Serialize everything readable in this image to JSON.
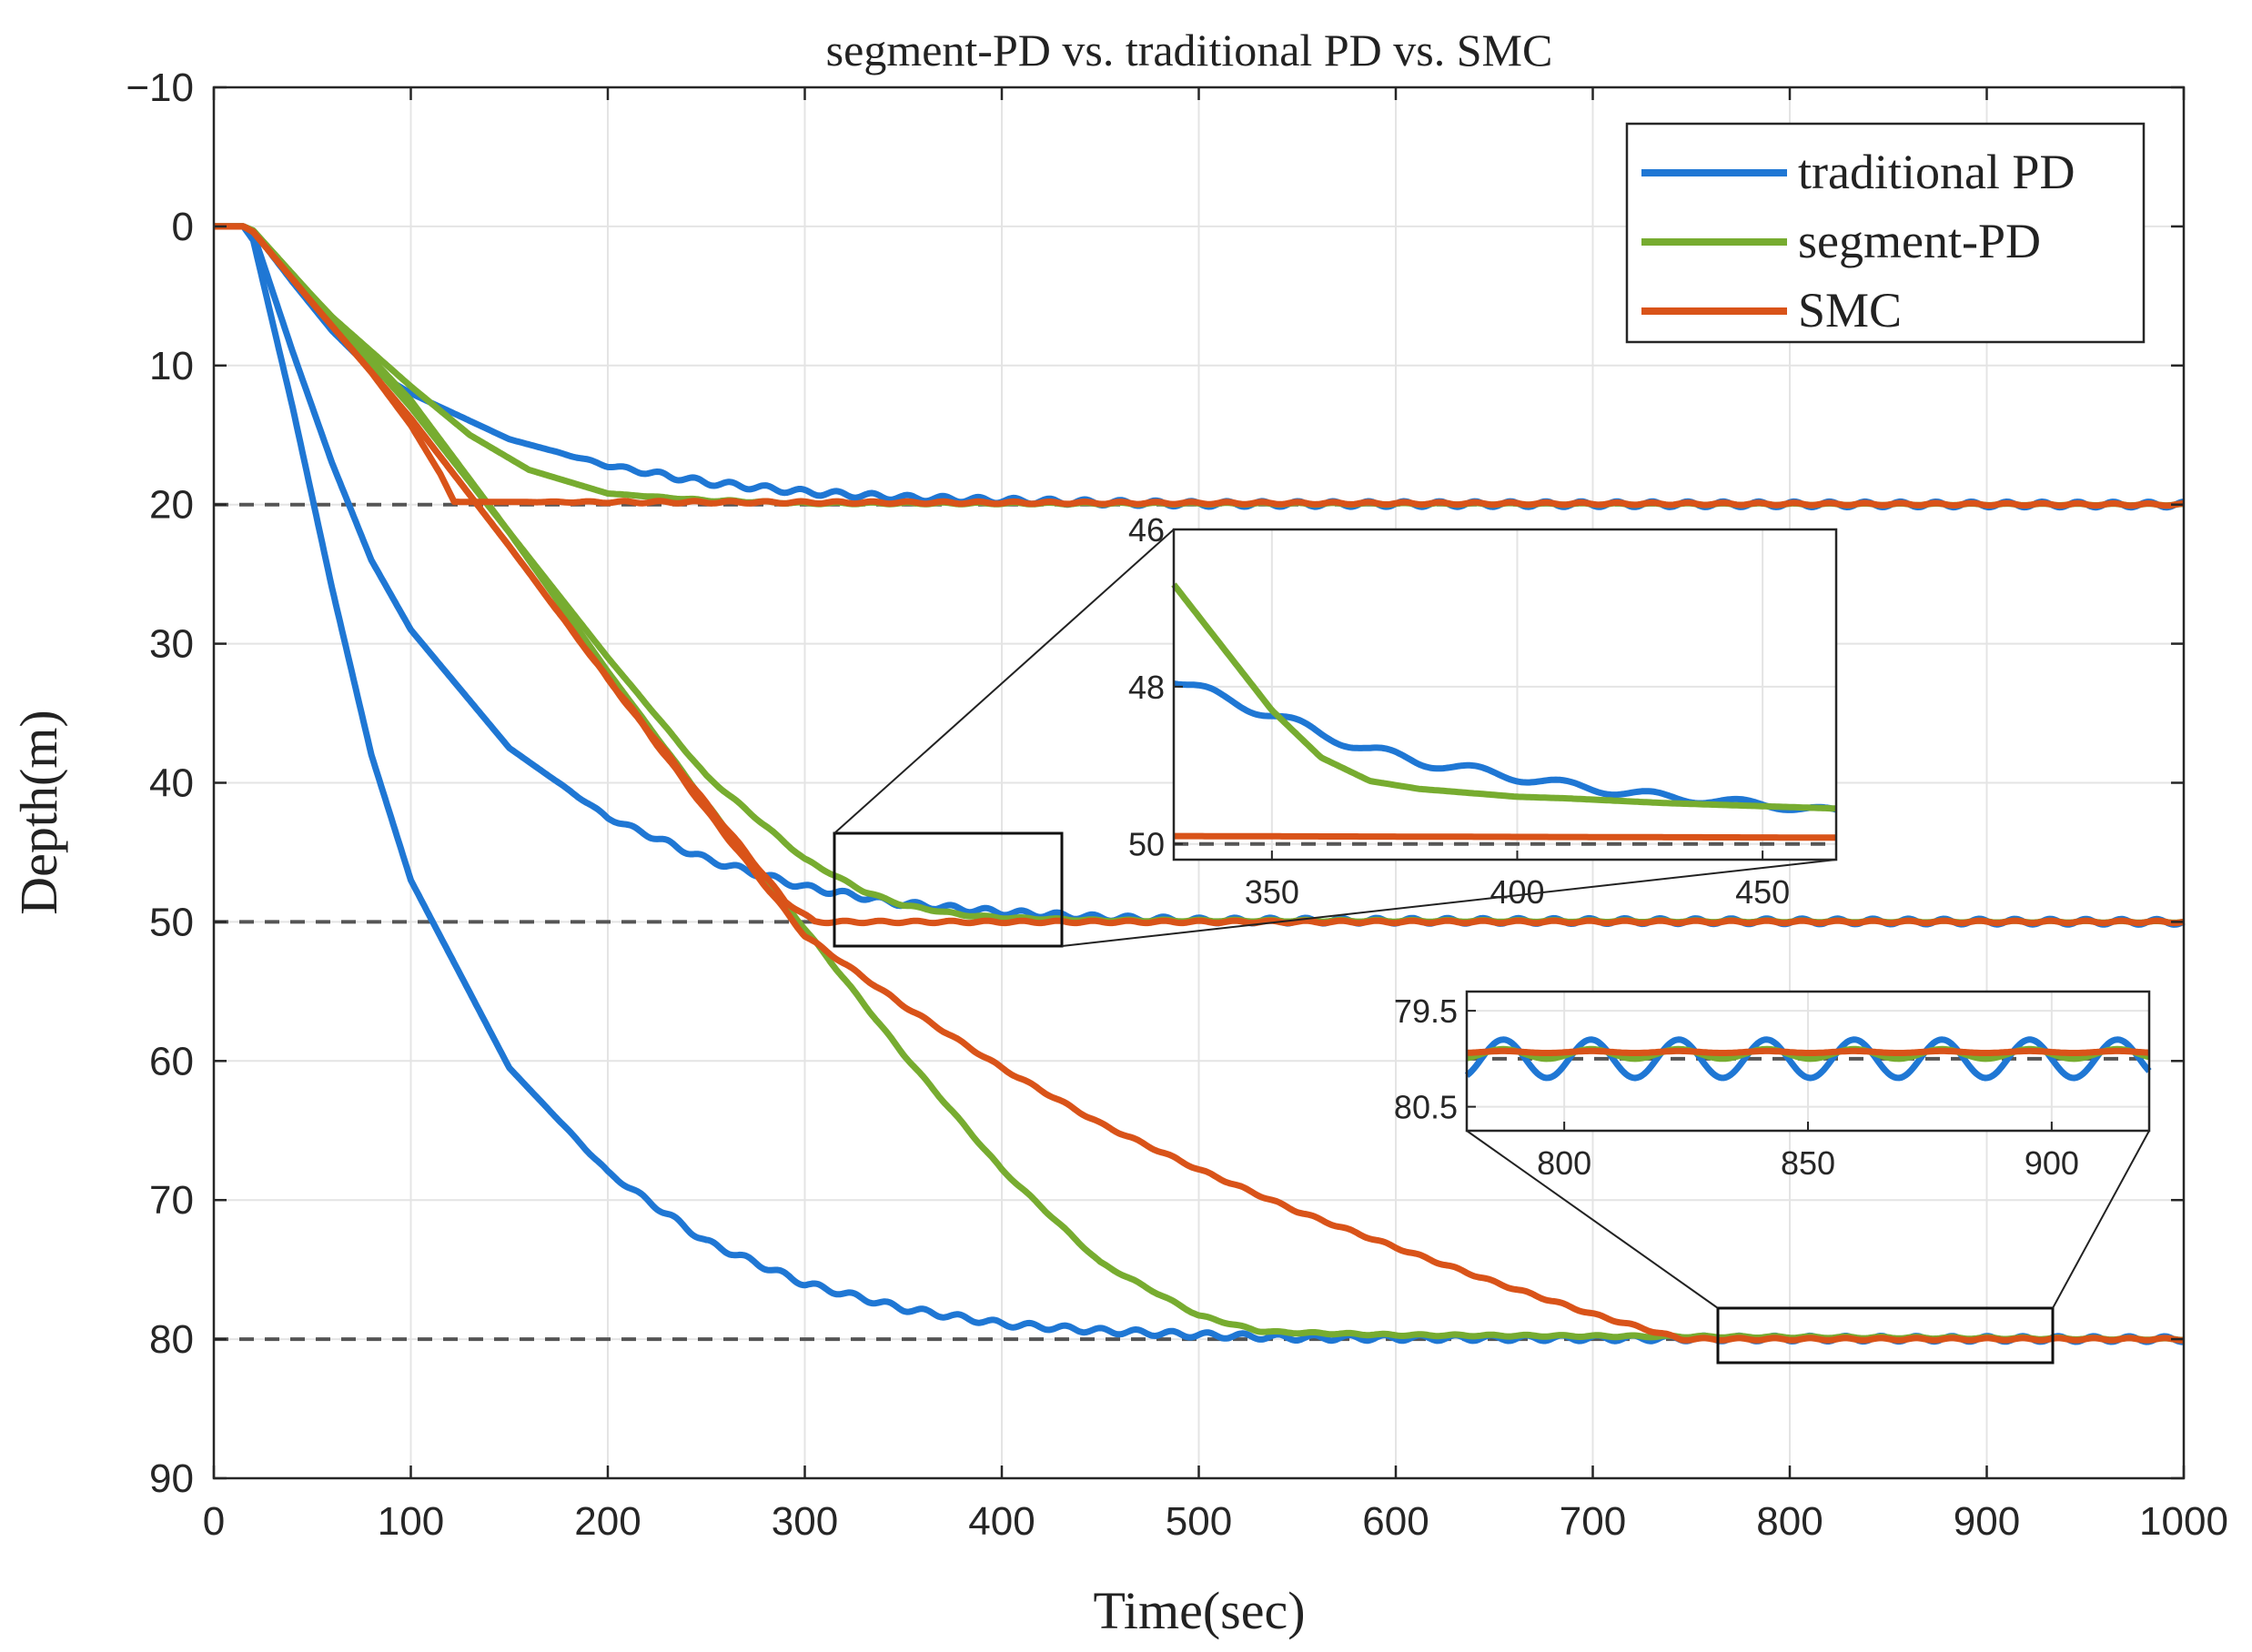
{
  "chart_data": [
    {
      "type": "line",
      "title": "segment-PD vs. traditional PD vs. SMC",
      "xlabel": "Time(sec)",
      "ylabel": "Depth(m)",
      "xlim": [
        0,
        1000
      ],
      "ylim": [
        -10,
        90
      ],
      "y_reversed": true,
      "grid": true,
      "legend_position": "top-right",
      "xticks": [
        "0",
        "100",
        "200",
        "300",
        "400",
        "500",
        "600",
        "700",
        "800",
        "900",
        "1000"
      ],
      "yticks": [
        "−10",
        "0",
        "10",
        "20",
        "30",
        "40",
        "50",
        "60",
        "70",
        "80",
        "90"
      ],
      "reference_lines": [
        20,
        50,
        80
      ],
      "series": [
        {
          "name": "traditional PD",
          "color": "#1f77d4",
          "runs": [
            {
              "target": 20,
              "x": [
                0,
                15,
                20,
                40,
                60,
                80,
                100,
                150,
                200,
                250,
                300,
                350,
                400,
                450,
                500,
                1000
              ],
              "y": [
                0,
                0,
                0.3,
                4,
                7.5,
                10.3,
                12,
                15.3,
                17.2,
                18.4,
                19.1,
                19.5,
                19.7,
                19.85,
                19.95,
                20
              ]
            },
            {
              "target": 50,
              "x": [
                0,
                15,
                20,
                40,
                60,
                80,
                100,
                150,
                200,
                250,
                300,
                350,
                400,
                450,
                500,
                1000
              ],
              "y": [
                0,
                0,
                0.5,
                9,
                17,
                24,
                29,
                37.5,
                42.5,
                45.5,
                47.5,
                48.7,
                49.3,
                49.7,
                49.9,
                50
              ]
            },
            {
              "target": 80,
              "x": [
                0,
                15,
                20,
                40,
                60,
                80,
                100,
                150,
                200,
                250,
                300,
                350,
                400,
                450,
                500,
                550,
                1000
              ],
              "y": [
                0,
                0,
                1,
                13,
                26,
                38,
                47,
                60.5,
                68,
                73,
                76,
                77.8,
                78.9,
                79.4,
                79.7,
                79.9,
                80
              ]
            }
          ]
        },
        {
          "name": "segment-PD",
          "color": "#77ac30",
          "runs": [
            {
              "target": 20,
              "x": [
                0,
                15,
                20,
                40,
                60,
                80,
                100,
                130,
                160,
                200,
                250,
                300,
                1000
              ],
              "y": [
                0,
                0,
                0.3,
                3.5,
                6.5,
                9,
                11.5,
                15,
                17.5,
                19.2,
                19.7,
                19.9,
                20
              ]
            },
            {
              "target": 50,
              "x": [
                0,
                15,
                20,
                50,
                100,
                150,
                200,
                250,
                300,
                330,
                350,
                380,
                400,
                450,
                1000
              ],
              "y": [
                0,
                0,
                0.3,
                5,
                12.5,
                22,
                31,
                39.5,
                45.5,
                47.8,
                48.8,
                49.5,
                49.7,
                49.9,
                50
              ]
            },
            {
              "target": 80,
              "x": [
                0,
                15,
                20,
                50,
                100,
                150,
                200,
                250,
                300,
                350,
                400,
                450,
                500,
                530,
                540,
                600,
                1000
              ],
              "y": [
                0,
                0,
                0.3,
                5,
                13,
                22,
                32,
                41.5,
                50.5,
                59.5,
                67.8,
                74.5,
                78.3,
                79.4,
                79.5,
                79.7,
                80
              ]
            }
          ]
        },
        {
          "name": "SMC",
          "color": "#d95319",
          "runs": [
            {
              "target": 20,
              "x": [
                0,
                15,
                20,
                50,
                80,
                100,
                115,
                122,
                1000
              ],
              "y": [
                0,
                0,
                0.4,
                5.5,
                10.5,
                14.3,
                17.8,
                19.8,
                20
              ]
            },
            {
              "target": 50,
              "x": [
                0,
                15,
                20,
                50,
                100,
                150,
                200,
                250,
                290,
                305,
                1000
              ],
              "y": [
                0,
                0,
                0.4,
                5.5,
                13.8,
                23,
                32.5,
                41.5,
                48.5,
                50,
                50
              ]
            },
            {
              "target": 80,
              "x": [
                0,
                15,
                20,
                50,
                100,
                150,
                200,
                250,
                300,
                350,
                400,
                450,
                500,
                550,
                600,
                650,
                700,
                745,
                1000
              ],
              "y": [
                0,
                0,
                0.4,
                5.5,
                13.8,
                23,
                32.5,
                42,
                51,
                56,
                60.5,
                64.5,
                67.8,
                70.8,
                73.4,
                75.9,
                78.2,
                80,
                80
              ]
            }
          ]
        }
      ]
    },
    {
      "type": "line",
      "title": "",
      "xlabel": "",
      "ylabel": "",
      "xlim": [
        330,
        465
      ],
      "ylim": [
        46,
        50.2
      ],
      "y_reversed": true,
      "xticks": [
        "350",
        "400",
        "450"
      ],
      "yticks": [
        "46",
        "48",
        "50"
      ],
      "series": [
        {
          "name": "traditional PD",
          "color": "#1f77d4",
          "x": [
            330,
            340,
            350,
            360,
            370,
            380,
            390,
            400,
            410,
            420,
            430,
            440,
            450,
            460,
            465
          ],
          "y": [
            47.9,
            48.15,
            48.35,
            48.6,
            48.8,
            48.95,
            49.05,
            49.15,
            49.25,
            49.33,
            49.4,
            49.45,
            49.5,
            49.55,
            49.6
          ]
        },
        {
          "name": "segment-PD",
          "color": "#77ac30",
          "x": [
            330,
            340,
            350,
            360,
            370,
            380,
            390,
            400,
            410,
            420,
            430,
            440,
            450,
            460,
            465
          ],
          "y": [
            46.7,
            47.5,
            48.3,
            48.9,
            49.2,
            49.3,
            49.35,
            49.4,
            49.42,
            49.45,
            49.48,
            49.5,
            49.52,
            49.54,
            49.55
          ]
        },
        {
          "name": "SMC",
          "color": "#d95319",
          "x": [
            330,
            465
          ],
          "y": [
            49.9,
            49.92
          ]
        }
      ]
    },
    {
      "type": "line",
      "title": "",
      "xlabel": "",
      "ylabel": "",
      "xlim": [
        780,
        920
      ],
      "ylim": [
        79.3,
        80.75
      ],
      "y_reversed": true,
      "xticks": [
        "800",
        "850",
        "900"
      ],
      "yticks": [
        "79.5",
        "80.5"
      ],
      "series": [
        {
          "name": "traditional PD",
          "color": "#1f77d4",
          "x": [
            780,
            920
          ],
          "y": [
            80,
            80
          ],
          "oscillation_amplitude": 0.2,
          "oscillation_period": 18
        },
        {
          "name": "segment-PD",
          "color": "#77ac30",
          "x": [
            780,
            920
          ],
          "y": [
            79.95,
            79.95
          ],
          "oscillation_amplitude": 0.05,
          "oscillation_period": 18
        },
        {
          "name": "SMC",
          "color": "#d95319",
          "x": [
            780,
            920
          ],
          "y": [
            79.93,
            79.93
          ]
        }
      ]
    }
  ]
}
